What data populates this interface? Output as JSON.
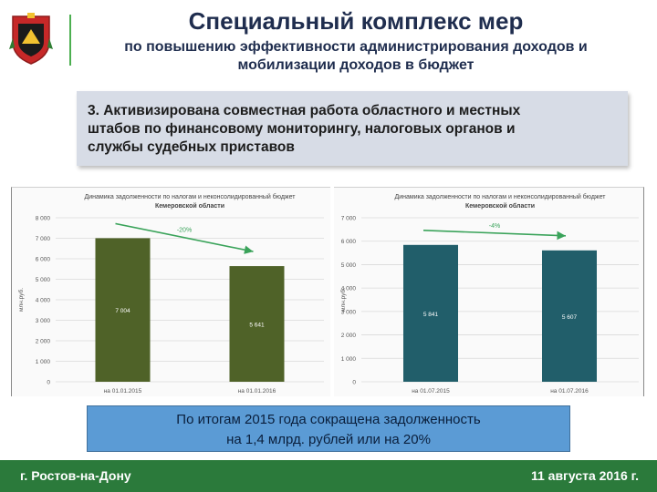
{
  "header": {
    "title": "Специальный комплекс мер",
    "subtitle_line1": "по повышению эффективности администрирования доходов и",
    "subtitle_line2": "мобилизации доходов в бюджет"
  },
  "point": {
    "line1": "3. Активизирована совместная работа областного и местных",
    "line2": "штабов по финансовому мониторингу, налоговых органов и",
    "line3": "службы судебных приставов"
  },
  "summary": {
    "line1": "По итогам 2015 года сокращена задолженность",
    "line2": "на 1,4 млрд. рублей или на 20%"
  },
  "footer": {
    "city": "г. Ростов-на-Дону",
    "date": "11 августа 2016 г."
  },
  "colors": {
    "left_bar": "#4f6228",
    "right_bar": "#215e6a",
    "trend_arrow": "#3aa35a",
    "footer": "#2b7a3b",
    "summary_box": "#5b9bd5"
  },
  "chart_data": [
    {
      "type": "bar",
      "title_line1": "Динамика задолженности по налогам и неконсолидированный бюджет",
      "title_line2": "Кемеровской области",
      "ylabel": "млн.руб.",
      "ylim": [
        0,
        8000
      ],
      "yticks": [
        0,
        1000,
        2000,
        3000,
        4000,
        5000,
        6000,
        7000,
        8000
      ],
      "ytick_labels": [
        "0",
        "1 000",
        "2 000",
        "3 000",
        "4 000",
        "5 000",
        "6 000",
        "7 000",
        "8 000"
      ],
      "categories": [
        "на 01.01.2015",
        "на 01.01.2016"
      ],
      "values": [
        7004,
        5641
      ],
      "value_labels": [
        "7 004",
        "5 641"
      ],
      "trend_label": "-20%",
      "grid": true
    },
    {
      "type": "bar",
      "title_line1": "Динамика задолженности по налогам и неконсолидированный бюджет",
      "title_line2": "Кемеровской области",
      "ylabel": "млн.руб.",
      "ylim": [
        0,
        7000
      ],
      "yticks": [
        0,
        1000,
        2000,
        3000,
        4000,
        5000,
        6000,
        7000
      ],
      "ytick_labels": [
        "0",
        "1 000",
        "2 000",
        "3 000",
        "4 000",
        "5 000",
        "6 000",
        "7 000"
      ],
      "categories": [
        "на 01.07.2015",
        "на 01.07.2016"
      ],
      "values": [
        5841,
        5607
      ],
      "value_labels": [
        "5 841",
        "5 607"
      ],
      "trend_label": "-4%",
      "grid": true
    }
  ]
}
